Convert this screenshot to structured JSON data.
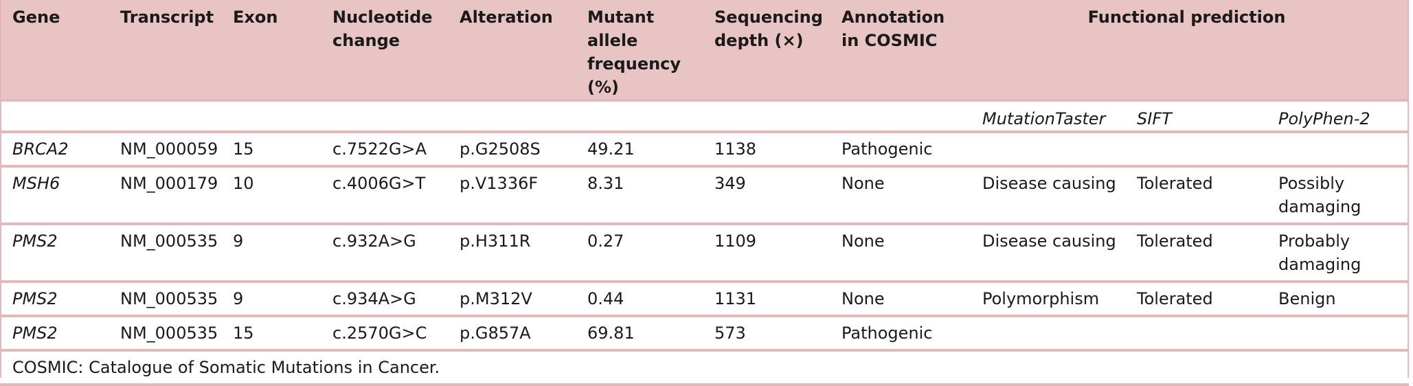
{
  "headers": {
    "gene": "Gene",
    "transcript": "Transcript",
    "exon": "Exon",
    "nucleotide_change": "Nucleotide change",
    "alteration": "Alteration",
    "maf": "Mutant allele frequency (%)",
    "depth": "Sequencing depth (×)",
    "cosmic": "Annotation in COSMIC",
    "functional": "Functional prediction"
  },
  "subheaders": {
    "mutationtaster": "MutationTaster",
    "sift": "SIFT",
    "polyphen": "PolyPhen-2"
  },
  "rows": [
    {
      "gene": "BRCA2",
      "transcript": "NM_000059",
      "exon": "15",
      "nucleotide": "c.7522G>A",
      "alteration": "p.G2508S",
      "maf": "49.21",
      "depth": "1138",
      "cosmic": "Pathogenic",
      "mutationtaster": "",
      "sift": "",
      "polyphen": ""
    },
    {
      "gene": "MSH6",
      "transcript": "NM_000179",
      "exon": "10",
      "nucleotide": "c.4006G>T",
      "alteration": "p.V1336F",
      "maf": "8.31",
      "depth": "349",
      "cosmic": "None",
      "mutationtaster": "Disease causing",
      "sift": "Tolerated",
      "polyphen": "Possibly damaging"
    },
    {
      "gene": "PMS2",
      "transcript": "NM_000535",
      "exon": "9",
      "nucleotide": "c.932A>G",
      "alteration": "p.H311R",
      "maf": "0.27",
      "depth": "1109",
      "cosmic": "None",
      "mutationtaster": "Disease causing",
      "sift": "Tolerated",
      "polyphen": "Probably damaging"
    },
    {
      "gene": "PMS2",
      "transcript": "NM_000535",
      "exon": "9",
      "nucleotide": "c.934A>G",
      "alteration": "p.M312V",
      "maf": "0.44",
      "depth": "1131",
      "cosmic": "None",
      "mutationtaster": "Polymorphism",
      "sift": "Tolerated",
      "polyphen": "Benign"
    },
    {
      "gene": "PMS2",
      "transcript": "NM_000535",
      "exon": "15",
      "nucleotide": "c.2570G>C",
      "alteration": "p.G857A",
      "maf": "69.81",
      "depth": "573",
      "cosmic": "Pathogenic",
      "mutationtaster": "",
      "sift": "",
      "polyphen": ""
    }
  ],
  "footnote": "COSMIC: Catalogue of Somatic Mutations in Cancer."
}
